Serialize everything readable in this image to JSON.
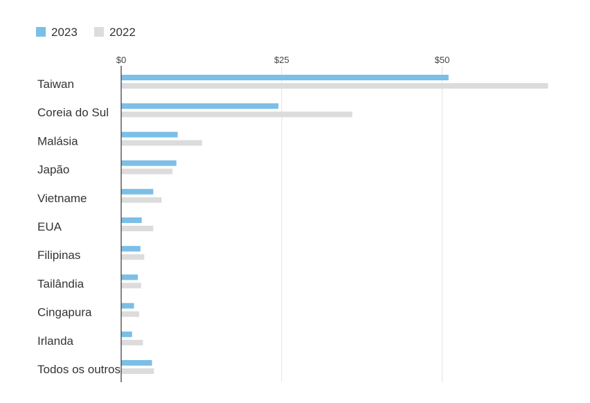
{
  "chart_data": {
    "type": "bar",
    "orientation": "horizontal",
    "categories": [
      "Taiwan",
      "Coreia do Sul",
      "Malásia",
      "Japão",
      "Vietname",
      "EUA",
      "Filipinas",
      "Tailândia",
      "Cingapura",
      "Irlanda",
      "Todos os outros"
    ],
    "series": [
      {
        "name": "2023",
        "color": "#7bbfe6",
        "values": [
          51.0,
          24.5,
          8.8,
          8.6,
          5.0,
          3.2,
          3.0,
          2.6,
          2.0,
          1.7,
          4.8
        ]
      },
      {
        "name": "2022",
        "color": "#dcdcdc",
        "values": [
          66.5,
          36.0,
          12.6,
          8.0,
          6.3,
          5.0,
          3.6,
          3.1,
          2.8,
          3.4,
          5.1
        ]
      }
    ],
    "xticks": [
      0,
      25,
      50
    ],
    "xtick_labels": [
      "$0",
      "$25",
      "$50"
    ],
    "xlim": [
      0,
      68
    ],
    "grid": true,
    "legend_position": "top-left"
  }
}
